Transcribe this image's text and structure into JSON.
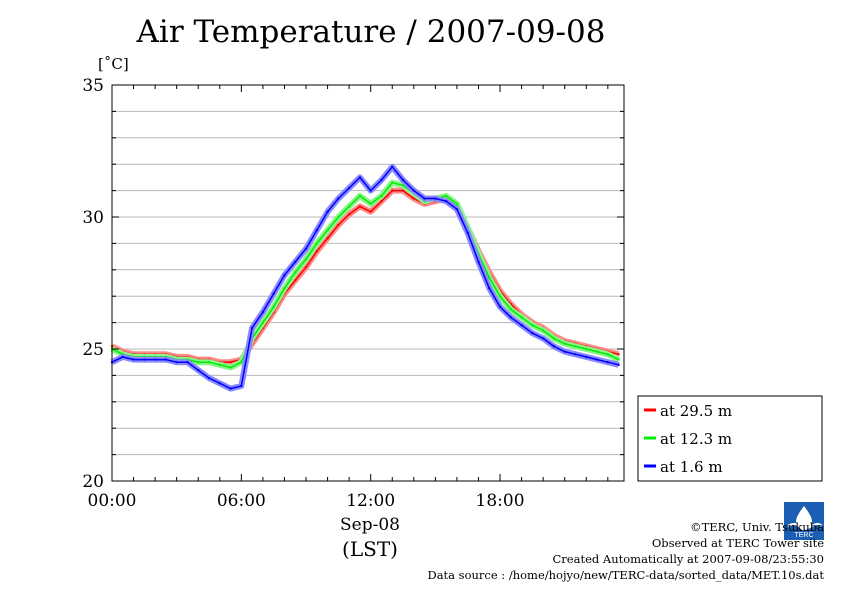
{
  "title": "Air Temperature / 2007-09-08",
  "unit_label": "[˚C]",
  "x_sublabel1": "Sep-08",
  "x_sublabel2": "(LST)",
  "credits": {
    "copyright": "©TERC, Univ. Tsukuba",
    "observed": "Observed at TERC Tower site",
    "created": "Created Automatically at 2007-09-08/23:55:30",
    "source": "Data source : /home/hojyo/new/TERC-data/sorted_data/MET.10s.dat"
  },
  "logo_text": "TERC",
  "chart_data": {
    "type": "line",
    "title": "Air Temperature / 2007-09-08",
    "ylabel": "[˚C]",
    "xlabel": "Sep-08 (LST)",
    "xlim": [
      0,
      23.75
    ],
    "ylim": [
      20,
      35
    ],
    "x_ticks": [
      {
        "value": 0,
        "label": "00:00"
      },
      {
        "value": 6,
        "label": "06:00"
      },
      {
        "value": 12,
        "label": "12:00"
      },
      {
        "value": 18,
        "label": "18:00"
      }
    ],
    "y_ticks": [
      {
        "value": 20,
        "label": "20"
      },
      {
        "value": 25,
        "label": "25"
      },
      {
        "value": 30,
        "label": "30"
      },
      {
        "value": 35,
        "label": "35"
      }
    ],
    "grid": true,
    "legend_position": "bottom-right outside",
    "x": [
      0,
      0.5,
      1,
      1.5,
      2,
      2.5,
      3,
      3.5,
      4,
      4.5,
      5,
      5.5,
      6,
      6.5,
      7,
      7.5,
      8,
      8.5,
      9,
      9.5,
      10,
      10.5,
      11,
      11.5,
      12,
      12.5,
      13,
      13.5,
      14,
      14.5,
      15,
      15.5,
      16,
      16.5,
      17,
      17.5,
      18,
      18.5,
      19,
      19.5,
      20,
      20.5,
      21,
      21.5,
      22,
      22.5,
      23,
      23.5
    ],
    "series": [
      {
        "name": "at 29.5 m",
        "color": "#ff0000",
        "values": [
          25.1,
          24.9,
          24.8,
          24.8,
          24.8,
          24.8,
          24.7,
          24.7,
          24.6,
          24.6,
          24.5,
          24.5,
          24.6,
          25.2,
          25.8,
          26.4,
          27.1,
          27.6,
          28.1,
          28.7,
          29.2,
          29.7,
          30.1,
          30.4,
          30.2,
          30.6,
          31.0,
          31.0,
          30.7,
          30.5,
          30.6,
          30.7,
          30.4,
          29.6,
          28.7,
          27.9,
          27.2,
          26.7,
          26.3,
          26.0,
          25.8,
          25.5,
          25.3,
          25.2,
          25.1,
          25.0,
          24.9,
          24.8
        ]
      },
      {
        "name": "at 12.3 m",
        "color": "#00ee00",
        "values": [
          25.0,
          24.8,
          24.7,
          24.7,
          24.7,
          24.7,
          24.6,
          24.6,
          24.5,
          24.5,
          24.4,
          24.3,
          24.5,
          25.4,
          26.0,
          26.6,
          27.3,
          27.9,
          28.4,
          29.0,
          29.5,
          30.0,
          30.4,
          30.8,
          30.5,
          30.8,
          31.3,
          31.2,
          30.9,
          30.6,
          30.7,
          30.8,
          30.5,
          29.6,
          28.6,
          27.7,
          27.0,
          26.5,
          26.2,
          25.9,
          25.7,
          25.4,
          25.2,
          25.1,
          25.0,
          24.9,
          24.8,
          24.6
        ]
      },
      {
        "name": "at 1.6 m",
        "color": "#0000ff",
        "values": [
          24.5,
          24.7,
          24.6,
          24.6,
          24.6,
          24.6,
          24.5,
          24.5,
          24.2,
          23.9,
          23.7,
          23.5,
          23.6,
          25.8,
          26.4,
          27.1,
          27.8,
          28.3,
          28.8,
          29.5,
          30.2,
          30.7,
          31.1,
          31.5,
          31.0,
          31.4,
          31.9,
          31.4,
          31.0,
          30.7,
          30.7,
          30.6,
          30.3,
          29.4,
          28.3,
          27.3,
          26.6,
          26.2,
          25.9,
          25.6,
          25.4,
          25.1,
          24.9,
          24.8,
          24.7,
          24.6,
          24.5,
          24.4
        ]
      }
    ]
  }
}
